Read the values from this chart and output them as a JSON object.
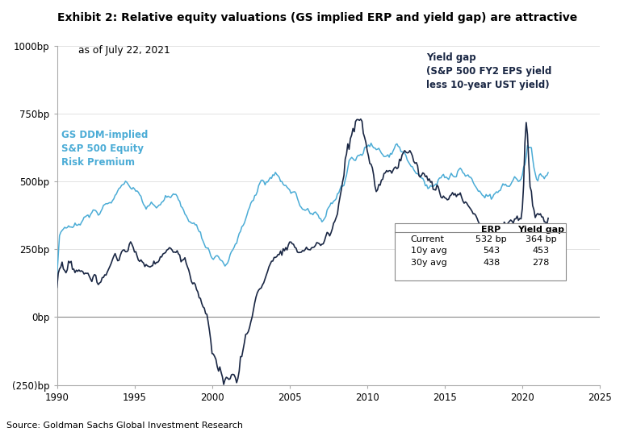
{
  "title": "Exhibit 2: Relative equity valuations (GS implied ERP and yield gap) are attractive",
  "subtitle": "as of July 22, 2021",
  "source": "Source: Goldman Sachs Global Investment Research",
  "xlim": [
    1990,
    2025
  ],
  "ylim": [
    -250,
    1000
  ],
  "yticks": [
    -250,
    0,
    250,
    500,
    750,
    1000
  ],
  "ytick_labels": [
    "(250)bp",
    "0bp",
    "250bp",
    "500bp",
    "750bp",
    "1000bp"
  ],
  "xticks": [
    1990,
    1995,
    2000,
    2005,
    2010,
    2015,
    2020,
    2025
  ],
  "erp_color": "#4BACD6",
  "yield_gap_color": "#1a2744",
  "erp_label": "GS DDM-implied\nS&P 500 Equity\nRisk Premium",
  "yield_gap_label": "Yield gap\n(S&P 500 FY2 EPS yield\nless 10-year UST yield)",
  "table_rows": [
    "Current",
    "10y avg",
    "30y avg"
  ],
  "table_erp": [
    "532 bp",
    "543",
    "438"
  ],
  "table_yield_gap": [
    "364 bp",
    "453",
    "278"
  ],
  "table_header_erp": "ERP",
  "table_header_yg": "Yield gap"
}
